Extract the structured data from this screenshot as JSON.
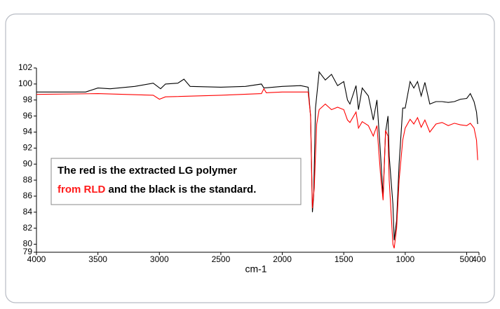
{
  "chart_data": {
    "type": "line",
    "x_label": "cm-1",
    "annotation": [
      "The red is the extracted LG polymer",
      "from RLD",
      "and the black is the standard."
    ],
    "xlim": [
      4000,
      400
    ],
    "ylim": [
      79,
      102
    ],
    "xticks": [
      4000,
      3500,
      3000,
      2500,
      2000,
      1500,
      1000,
      500,
      400
    ],
    "yticks": [
      102,
      100,
      98,
      96,
      94,
      92,
      90,
      88,
      86,
      84,
      82,
      80,
      79
    ],
    "series": [
      {
        "color": "#000000",
        "x": [
          4000,
          3600,
          3500,
          3400,
          3200,
          3050,
          2990,
          2950,
          2850,
          2800,
          2750,
          2500,
          2300,
          2170,
          2150,
          2000,
          1850,
          1790,
          1770,
          1755,
          1745,
          1730,
          1700,
          1650,
          1600,
          1550,
          1500,
          1470,
          1450,
          1400,
          1380,
          1350,
          1300,
          1260,
          1230,
          1200,
          1180,
          1160,
          1140,
          1130,
          1100,
          1090,
          1070,
          1050,
          1020,
          1000,
          960,
          930,
          900,
          870,
          840,
          800,
          750,
          700,
          650,
          600,
          550,
          500,
          470,
          440,
          420,
          410
        ],
        "values": [
          99.0,
          99.0,
          99.5,
          99.4,
          99.7,
          100.1,
          99.4,
          100.0,
          100.1,
          100.6,
          99.7,
          99.6,
          99.7,
          100.0,
          99.5,
          99.7,
          99.8,
          99.6,
          96,
          84,
          86,
          97,
          101.5,
          100.5,
          101.2,
          99.8,
          100.3,
          98,
          97.5,
          99.8,
          96.8,
          99.5,
          98.5,
          95.5,
          98,
          91,
          86,
          94,
          96,
          91,
          85,
          80.5,
          83,
          90,
          97,
          97,
          100.3,
          99.5,
          100.3,
          98.5,
          100.2,
          97.5,
          97.8,
          97.8,
          97.7,
          97.8,
          98.1,
          98.2,
          98.8,
          97.8,
          96.5,
          95
        ]
      },
      {
        "color": "#ff0000",
        "x": [
          4000,
          3500,
          3050,
          3000,
          2950,
          2500,
          2170,
          2150,
          2130,
          2000,
          1790,
          1770,
          1755,
          1740,
          1720,
          1700,
          1650,
          1600,
          1550,
          1500,
          1470,
          1450,
          1400,
          1380,
          1350,
          1300,
          1260,
          1230,
          1200,
          1180,
          1160,
          1140,
          1130,
          1100,
          1090,
          1070,
          1050,
          1020,
          1000,
          960,
          930,
          900,
          870,
          840,
          800,
          750,
          700,
          650,
          600,
          550,
          500,
          470,
          440,
          420,
          410
        ],
        "values": [
          98.7,
          98.8,
          98.6,
          98.1,
          98.4,
          98.6,
          98.8,
          99.4,
          98.9,
          99.0,
          99.0,
          96,
          84.5,
          87,
          95,
          96.8,
          97.5,
          96.8,
          97.1,
          96.8,
          95.5,
          95.2,
          96.5,
          94.5,
          95.3,
          94.8,
          93.5,
          94.8,
          88.5,
          85.5,
          94.2,
          93.5,
          88,
          80,
          79.5,
          82,
          88,
          93,
          94.5,
          95.6,
          95,
          95.8,
          94.6,
          95.5,
          94,
          95,
          95.2,
          94.8,
          95.1,
          94.9,
          94.8,
          95.1,
          94.5,
          93,
          90.5
        ]
      }
    ]
  }
}
